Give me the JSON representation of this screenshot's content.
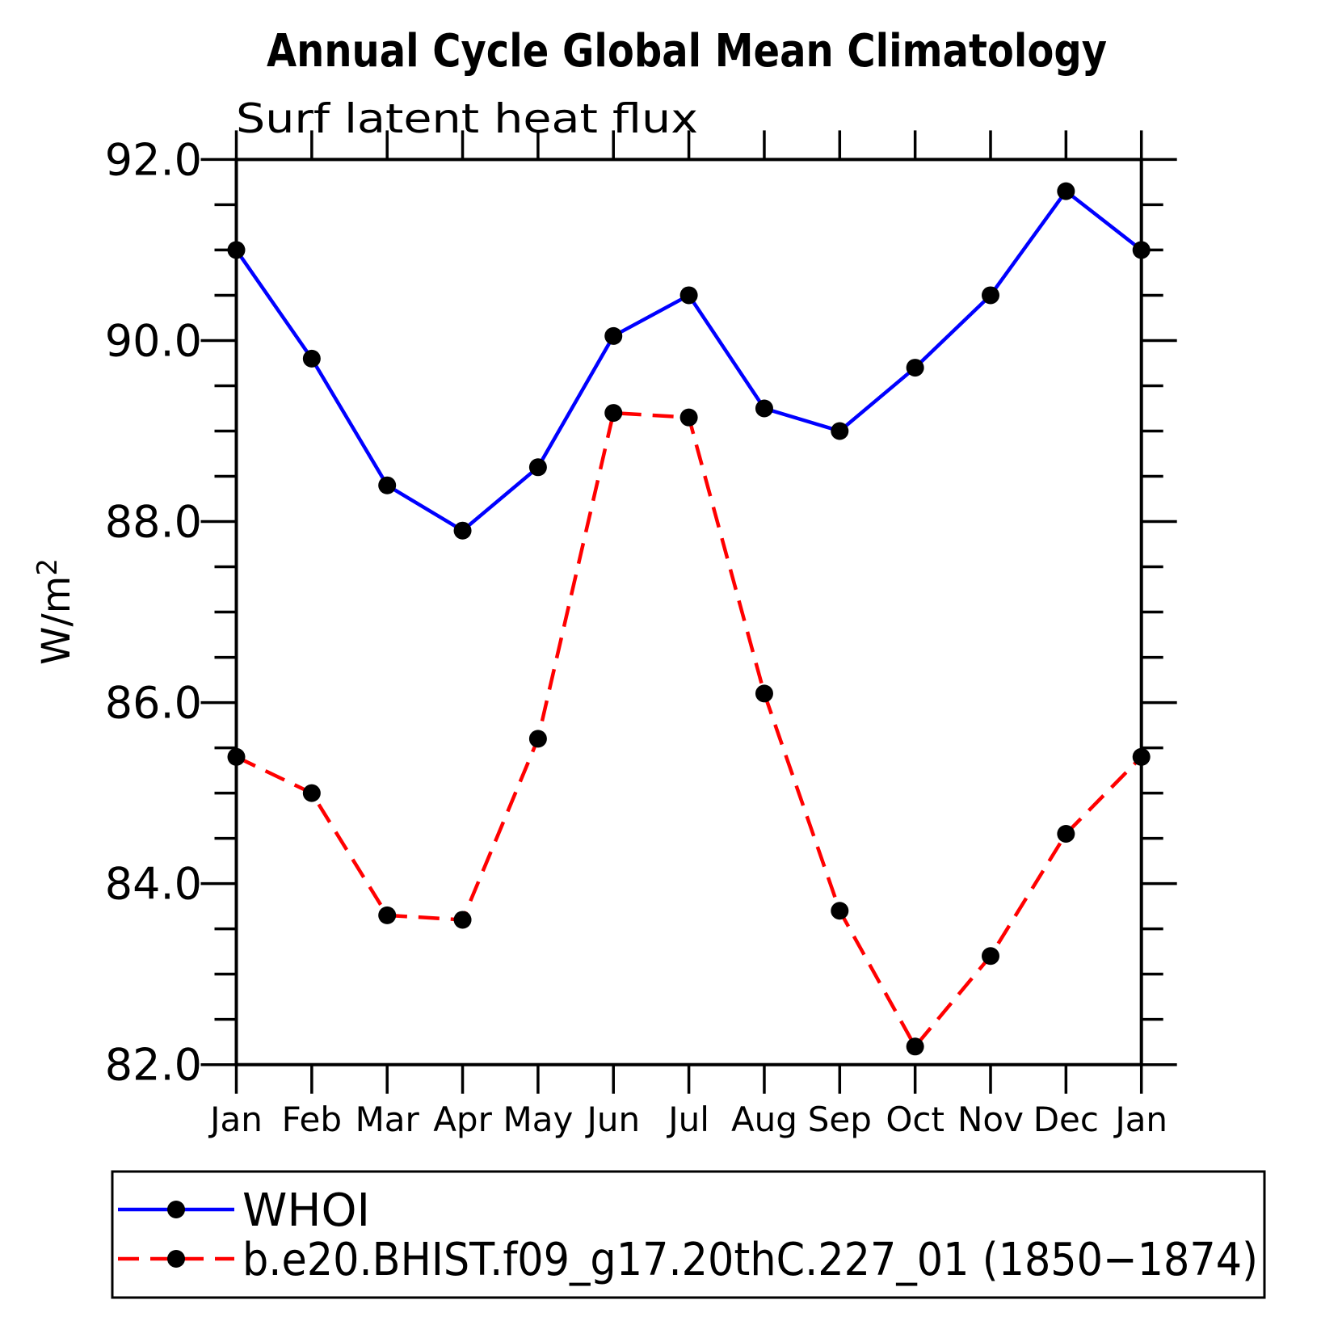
{
  "chart_data": {
    "type": "line",
    "title": "Annual Cycle Global Mean Climatology",
    "subtitle": "Surf latent heat flux",
    "ylabel_base": "W/m",
    "ylabel_sup": "2",
    "ylim": [
      82.0,
      92.0
    ],
    "ytick_labels": [
      "92.0",
      "90.0",
      "88.0",
      "86.0",
      "84.0",
      "82.0"
    ],
    "y_minor_step": 0.5,
    "grid": "off",
    "legend_position": "bottom-left",
    "categories": [
      "Jan",
      "Feb",
      "Mar",
      "Apr",
      "May",
      "Jun",
      "Jul",
      "Aug",
      "Sep",
      "Oct",
      "Nov",
      "Dec",
      "Jan"
    ],
    "series": [
      {
        "name": "WHOI",
        "color": "#0000ff",
        "line_style": "solid",
        "marker": "circle",
        "marker_color": "#000000",
        "values": [
          91.0,
          89.8,
          88.4,
          87.9,
          88.6,
          90.05,
          90.5,
          89.25,
          89.0,
          89.7,
          90.5,
          91.65,
          91.0
        ]
      },
      {
        "name": "b.e20.BHIST.f09_g17.20thC.227_01 (1850−1874)",
        "color": "#ff0000",
        "line_style": "dashed",
        "marker": "circle",
        "marker_color": "#000000",
        "values": [
          85.4,
          85.0,
          83.65,
          83.6,
          85.6,
          89.2,
          89.15,
          86.1,
          83.7,
          82.2,
          83.2,
          84.55,
          85.4
        ]
      }
    ]
  }
}
